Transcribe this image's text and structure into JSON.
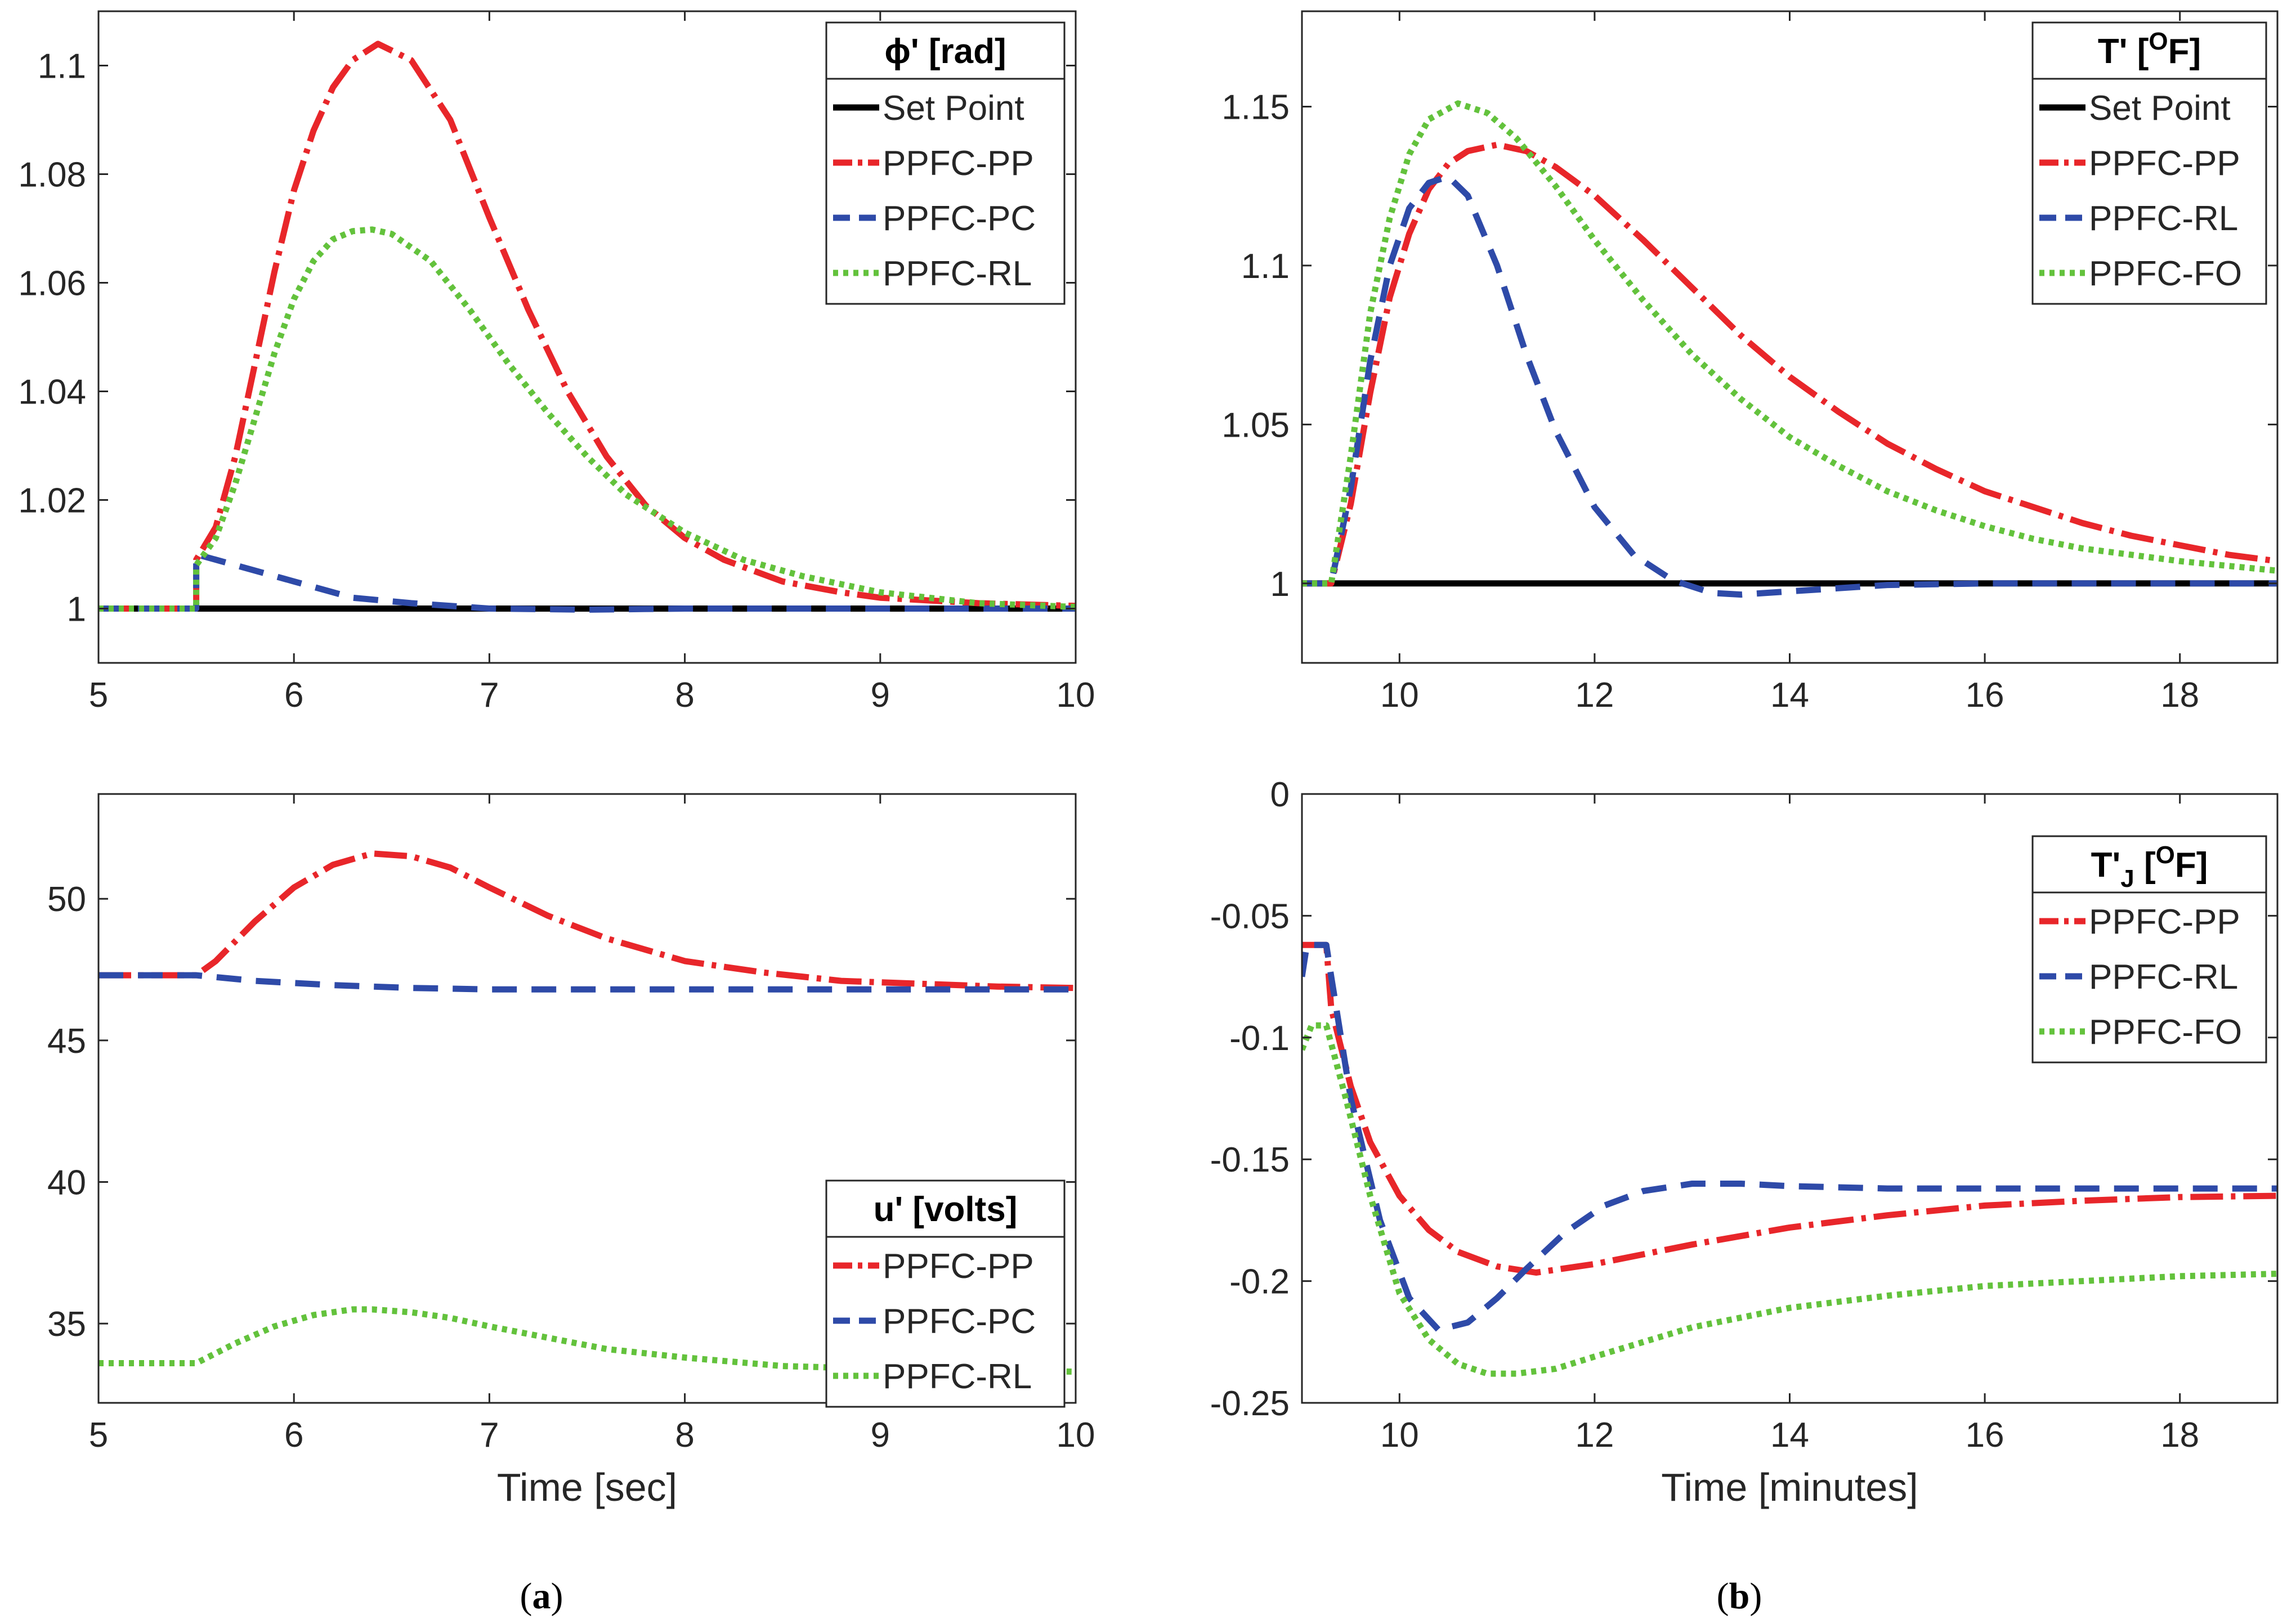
{
  "figure": {
    "caption_a": {
      "open": "(",
      "letter": "a",
      "close": ")"
    },
    "caption_b": {
      "open": "(",
      "letter": "b",
      "close": ")"
    }
  },
  "colors": {
    "set_point": "#000000",
    "red": "#e8262a",
    "blue": "#2e4aa8",
    "green": "#63c23c",
    "axis": "#262626"
  },
  "chart_data": [
    {
      "id": "a-top",
      "type": "line",
      "xlabel": "",
      "ylabel": "",
      "xlim": [
        5,
        10
      ],
      "ylim": [
        0.99,
        1.11
      ],
      "xticks": [
        5,
        6,
        7,
        8,
        9,
        10
      ],
      "xtick_labels": [
        "5",
        "6",
        "7",
        "8",
        "9",
        "10"
      ],
      "yticks": [
        1,
        1.02,
        1.04,
        1.06,
        1.08,
        1.1
      ],
      "ytick_labels": [
        "1",
        "1.02",
        "1.04",
        "1.06",
        "1.08",
        "1.1"
      ],
      "legend": {
        "title": "ϕ' [rad]",
        "position": "top-right"
      },
      "series": [
        {
          "name": "Set Point",
          "style": "solid",
          "color": "#000000",
          "x": [
            5,
            10
          ],
          "y": [
            1,
            1
          ]
        },
        {
          "name": "PPFC-PP",
          "style": "dashdot",
          "color": "#e8262a",
          "x": [
            5,
            5.5,
            5.5,
            5.6,
            5.7,
            5.8,
            5.9,
            6.0,
            6.1,
            6.2,
            6.3,
            6.43,
            6.6,
            6.8,
            7.0,
            7.2,
            7.4,
            7.6,
            7.8,
            8.0,
            8.2,
            8.5,
            8.8,
            9.0,
            9.5,
            10
          ],
          "y": [
            1,
            1,
            1.009,
            1.015,
            1.028,
            1.045,
            1.062,
            1.077,
            1.088,
            1.096,
            1.101,
            1.104,
            1.101,
            1.09,
            1.072,
            1.055,
            1.04,
            1.028,
            1.019,
            1.013,
            1.009,
            1.005,
            1.003,
            1.002,
            1.001,
            1.0005
          ]
        },
        {
          "name": "PPFC-PC",
          "style": "dashed",
          "color": "#2e4aa8",
          "x": [
            5,
            5.5,
            5.5,
            5.7,
            6.0,
            6.3,
            6.6,
            7.0,
            7.5,
            8.0,
            9.0,
            10
          ],
          "y": [
            1,
            1,
            1.01,
            1.008,
            1.005,
            1.002,
            1.001,
            1.0,
            0.9998,
            1.0,
            1.0,
            1.0
          ]
        },
        {
          "name": "PPFC-RL",
          "style": "dotted",
          "color": "#63c23c",
          "x": [
            5,
            5.5,
            5.5,
            5.6,
            5.7,
            5.8,
            5.9,
            6.0,
            6.1,
            6.2,
            6.3,
            6.4,
            6.5,
            6.7,
            6.9,
            7.1,
            7.3,
            7.5,
            7.7,
            8.0,
            8.3,
            8.6,
            9.0,
            9.5,
            10
          ],
          "y": [
            1,
            1,
            1.008,
            1.013,
            1.023,
            1.035,
            1.047,
            1.057,
            1.064,
            1.068,
            1.0695,
            1.0698,
            1.069,
            1.064,
            1.055,
            1.045,
            1.036,
            1.028,
            1.021,
            1.014,
            1.009,
            1.006,
            1.003,
            1.001,
            1.0003
          ]
        }
      ]
    },
    {
      "id": "b-top",
      "type": "line",
      "xlabel": "",
      "ylabel": "",
      "xlim": [
        9,
        19
      ],
      "ylim": [
        0.975,
        1.18
      ],
      "xticks": [
        10,
        12,
        14,
        16,
        18
      ],
      "xtick_labels": [
        "10",
        "12",
        "14",
        "16",
        "18"
      ],
      "yticks": [
        1,
        1.05,
        1.1,
        1.15
      ],
      "ytick_labels": [
        "1",
        "1.05",
        "1.1",
        "1.15"
      ],
      "legend": {
        "title": "T' [",
        "title_sup": "O",
        "title_end": "F]",
        "position": "top-right"
      },
      "series": [
        {
          "name": "Set Point",
          "style": "solid",
          "color": "#000000",
          "x": [
            9,
            19
          ],
          "y": [
            1,
            1
          ]
        },
        {
          "name": "PPFC-PP",
          "style": "dashdot",
          "color": "#e8262a",
          "x": [
            9,
            9.3,
            9.5,
            9.7,
            9.9,
            10.1,
            10.3,
            10.5,
            10.7,
            11.0,
            11.3,
            11.6,
            12.0,
            12.5,
            13.0,
            13.5,
            14.0,
            14.5,
            15.0,
            15.5,
            16.0,
            16.5,
            17.0,
            17.5,
            18.0,
            18.5,
            19
          ],
          "y": [
            1,
            1,
            1.025,
            1.06,
            1.09,
            1.11,
            1.124,
            1.132,
            1.136,
            1.138,
            1.136,
            1.131,
            1.122,
            1.108,
            1.093,
            1.078,
            1.065,
            1.054,
            1.044,
            1.036,
            1.029,
            1.024,
            1.019,
            1.015,
            1.012,
            1.009,
            1.007
          ]
        },
        {
          "name": "PPFC-RL",
          "style": "dashed",
          "color": "#2e4aa8",
          "x": [
            9,
            9.3,
            9.5,
            9.7,
            9.9,
            10.1,
            10.3,
            10.5,
            10.7,
            11.0,
            11.3,
            11.6,
            12.0,
            12.4,
            12.8,
            13.2,
            13.5,
            14.0,
            14.5,
            15.0,
            16.0,
            17.0,
            18.0,
            19
          ],
          "y": [
            1,
            1,
            1.03,
            1.07,
            1.1,
            1.118,
            1.126,
            1.128,
            1.122,
            1.1,
            1.072,
            1.048,
            1.024,
            1.009,
            1.001,
            0.997,
            0.9965,
            0.9975,
            0.9985,
            0.9995,
            1.0,
            1.0,
            1.0,
            1.0
          ]
        },
        {
          "name": "PPFC-FO",
          "style": "dotted",
          "color": "#63c23c",
          "x": [
            9,
            9.3,
            9.5,
            9.7,
            9.9,
            10.1,
            10.3,
            10.6,
            10.9,
            11.2,
            11.6,
            12.0,
            12.5,
            13.0,
            13.5,
            14.0,
            14.5,
            15.0,
            15.5,
            16.0,
            16.5,
            17.0,
            18.0,
            19
          ],
          "y": [
            1,
            1,
            1.04,
            1.085,
            1.115,
            1.135,
            1.146,
            1.151,
            1.148,
            1.14,
            1.125,
            1.108,
            1.089,
            1.072,
            1.058,
            1.046,
            1.037,
            1.029,
            1.023,
            1.018,
            1.014,
            1.011,
            1.007,
            1.004
          ]
        }
      ]
    },
    {
      "id": "a-bottom",
      "type": "line",
      "xlabel": "Time [sec]",
      "ylabel": "",
      "xlim": [
        5,
        10
      ],
      "ylim": [
        32.2,
        53.7
      ],
      "xticks": [
        5,
        6,
        7,
        8,
        9,
        10
      ],
      "xtick_labels": [
        "5",
        "6",
        "7",
        "8",
        "9",
        "10"
      ],
      "yticks": [
        35,
        40,
        45,
        50
      ],
      "ytick_labels": [
        "35",
        "40",
        "45",
        "50"
      ],
      "legend": {
        "title": "u' [volts]",
        "position": "bottom-right"
      },
      "series": [
        {
          "name": "PPFC-PP",
          "style": "dashdot",
          "color": "#e8262a",
          "x": [
            5,
            5.5,
            5.6,
            5.8,
            6.0,
            6.2,
            6.4,
            6.6,
            6.8,
            7.0,
            7.3,
            7.6,
            8.0,
            8.4,
            8.8,
            9.2,
            9.6,
            10
          ],
          "y": [
            47.3,
            47.3,
            47.8,
            49.2,
            50.4,
            51.2,
            51.6,
            51.5,
            51.1,
            50.4,
            49.4,
            48.6,
            47.8,
            47.4,
            47.1,
            47.0,
            46.9,
            46.85
          ]
        },
        {
          "name": "PPFC-PC",
          "style": "dashed",
          "color": "#2e4aa8",
          "x": [
            5,
            5.5,
            5.8,
            6.2,
            6.6,
            7.0,
            7.5,
            8.0,
            9.0,
            10
          ],
          "y": [
            47.3,
            47.3,
            47.1,
            46.95,
            46.85,
            46.8,
            46.8,
            46.8,
            46.8,
            46.8
          ]
        },
        {
          "name": "PPFC-RL",
          "style": "dotted",
          "color": "#63c23c",
          "x": [
            5,
            5.5,
            5.7,
            5.9,
            6.1,
            6.3,
            6.4,
            6.6,
            6.8,
            7.0,
            7.3,
            7.6,
            8.0,
            8.5,
            9.0,
            9.5,
            10
          ],
          "y": [
            33.6,
            33.6,
            34.3,
            34.9,
            35.3,
            35.5,
            35.5,
            35.4,
            35.2,
            34.9,
            34.5,
            34.1,
            33.8,
            33.5,
            33.4,
            33.35,
            33.3
          ]
        }
      ]
    },
    {
      "id": "b-bottom",
      "type": "line",
      "xlabel": "Time [minutes]",
      "ylabel": "",
      "xlim": [
        9,
        19
      ],
      "ylim": [
        -0.25,
        0
      ],
      "xticks": [
        10,
        12,
        14,
        16,
        18
      ],
      "xtick_labels": [
        "10",
        "12",
        "14",
        "16",
        "18"
      ],
      "yticks": [
        -0.25,
        -0.2,
        -0.15,
        -0.1,
        -0.05,
        0
      ],
      "ytick_labels": [
        "-0.25",
        "-0.2",
        "-0.15",
        "-0.1",
        "-0.05",
        "0"
      ],
      "legend": {
        "title": "T'",
        "title_sub": "J",
        "title_mid": " [",
        "title_sup": "O",
        "title_end": "F]",
        "position": "top-right"
      },
      "series": [
        {
          "name": "PPFC-PP",
          "style": "dashdot",
          "color": "#e8262a",
          "x": [
            9,
            9.25,
            9.3,
            9.5,
            9.7,
            10.0,
            10.3,
            10.6,
            11.0,
            11.4,
            12.0,
            12.5,
            13.0,
            14.0,
            15.0,
            16.0,
            17.0,
            18.0,
            19
          ],
          "y": [
            -0.062,
            -0.062,
            -0.088,
            -0.12,
            -0.143,
            -0.165,
            -0.179,
            -0.188,
            -0.194,
            -0.1965,
            -0.193,
            -0.189,
            -0.185,
            -0.178,
            -0.173,
            -0.169,
            -0.167,
            -0.1655,
            -0.165
          ]
        },
        {
          "name": "PPFC-RL",
          "style": "dashed",
          "color": "#2e4aa8",
          "x": [
            9,
            9.05,
            9.25,
            9.3,
            9.5,
            9.8,
            10.1,
            10.4,
            10.7,
            11.0,
            11.3,
            11.7,
            12.1,
            12.5,
            13.0,
            13.5,
            14.0,
            15.0,
            16.0,
            17.0,
            18.0,
            19
          ],
          "y": [
            -0.075,
            -0.062,
            -0.062,
            -0.075,
            -0.125,
            -0.175,
            -0.207,
            -0.22,
            -0.217,
            -0.207,
            -0.195,
            -0.18,
            -0.169,
            -0.163,
            -0.16,
            -0.16,
            -0.161,
            -0.162,
            -0.162,
            -0.162,
            -0.162,
            -0.162
          ]
        },
        {
          "name": "PPFC-FO",
          "style": "dotted",
          "color": "#63c23c",
          "x": [
            9,
            9.1,
            9.25,
            9.45,
            9.7,
            10.0,
            10.3,
            10.6,
            10.9,
            11.2,
            11.6,
            12.0,
            12.5,
            13.0,
            14.0,
            15.0,
            16.0,
            17.0,
            18.0,
            19
          ],
          "y": [
            -0.105,
            -0.095,
            -0.095,
            -0.125,
            -0.165,
            -0.205,
            -0.224,
            -0.234,
            -0.238,
            -0.238,
            -0.236,
            -0.231,
            -0.225,
            -0.219,
            -0.211,
            -0.206,
            -0.202,
            -0.2,
            -0.198,
            -0.197
          ]
        }
      ]
    }
  ]
}
